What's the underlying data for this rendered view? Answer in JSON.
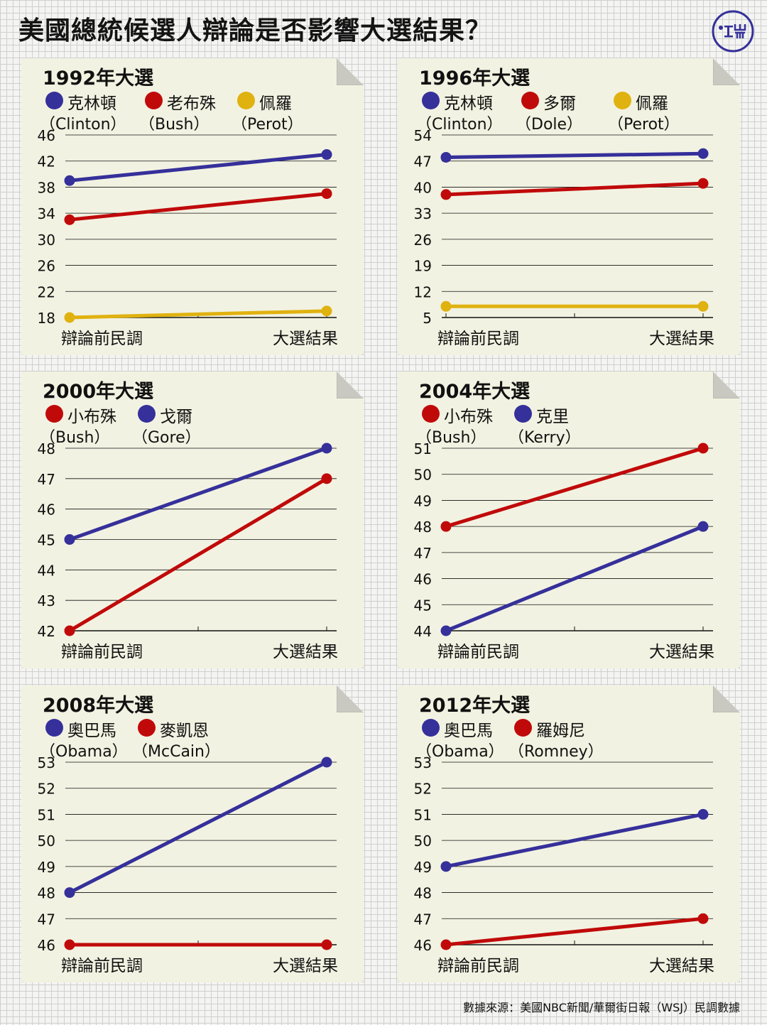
{
  "title": "美國總統候選人辯論是否影響大選結果？",
  "source": "數據來源：美國NBC新聞/華爾街日報（WSJ）民調數據",
  "logo_icon": "theinitium-logo-icon",
  "colors": {
    "blue": "#35309a",
    "red": "#c00a0a",
    "yellow": "#e0b210",
    "panel": "#f2f2e2",
    "axis": "#111111"
  },
  "chart_data": [
    {
      "type": "line",
      "title": "1992年大選",
      "categories": [
        "辯論前民調",
        "大選結果"
      ],
      "yticks": [
        18,
        22,
        26,
        30,
        34,
        38,
        42,
        46
      ],
      "ylim": [
        18,
        46
      ],
      "legend": [
        {
          "cn": "克林頓",
          "en": "（Clinton）",
          "color": "#35309a"
        },
        {
          "cn": "老布殊",
          "en": "（Bush）",
          "color": "#c00a0a"
        },
        {
          "cn": "佩羅",
          "en": "（Perot）",
          "color": "#e0b210"
        }
      ],
      "series": [
        {
          "name": "克林頓（Clinton）",
          "color": "#35309a",
          "values": [
            39,
            43
          ]
        },
        {
          "name": "老布殊（Bush）",
          "color": "#c00a0a",
          "values": [
            33,
            37
          ]
        },
        {
          "name": "佩羅（Perot）",
          "color": "#e0b210",
          "values": [
            18,
            19
          ]
        }
      ]
    },
    {
      "type": "line",
      "title": "1996年大選",
      "categories": [
        "辯論前民調",
        "大選結果"
      ],
      "yticks": [
        5,
        12,
        19,
        26,
        33,
        40,
        47,
        54
      ],
      "ylim": [
        5,
        54
      ],
      "legend": [
        {
          "cn": "克林頓",
          "en": "（Clinton）",
          "color": "#35309a"
        },
        {
          "cn": "多爾",
          "en": "（Dole）",
          "color": "#c00a0a"
        },
        {
          "cn": "佩羅",
          "en": "（Perot）",
          "color": "#e0b210"
        }
      ],
      "series": [
        {
          "name": "克林頓（Clinton）",
          "color": "#35309a",
          "values": [
            48,
            49
          ]
        },
        {
          "name": "多爾（Dole）",
          "color": "#c00a0a",
          "values": [
            38,
            41
          ]
        },
        {
          "name": "佩羅（Perot）",
          "color": "#e0b210",
          "values": [
            8,
            8
          ]
        }
      ]
    },
    {
      "type": "line",
      "title": "2000年大選",
      "categories": [
        "辯論前民調",
        "大選結果"
      ],
      "yticks": [
        42,
        43,
        44,
        45,
        46,
        47,
        48
      ],
      "ylim": [
        42,
        48
      ],
      "legend": [
        {
          "cn": "小布殊",
          "en": "（Bush）",
          "color": "#c00a0a"
        },
        {
          "cn": "戈爾",
          "en": "（Gore）",
          "color": "#35309a"
        }
      ],
      "series": [
        {
          "name": "小布殊（Bush）",
          "color": "#c00a0a",
          "values": [
            42,
            47
          ]
        },
        {
          "name": "戈爾（Gore）",
          "color": "#35309a",
          "values": [
            45,
            48
          ]
        }
      ]
    },
    {
      "type": "line",
      "title": "2004年大選",
      "categories": [
        "辯論前民調",
        "大選結果"
      ],
      "yticks": [
        44,
        45,
        46,
        47,
        48,
        49,
        50,
        51
      ],
      "ylim": [
        44,
        51
      ],
      "legend": [
        {
          "cn": "小布殊",
          "en": "（Bush）",
          "color": "#c00a0a"
        },
        {
          "cn": "克里",
          "en": "（Kerry）",
          "color": "#35309a"
        }
      ],
      "series": [
        {
          "name": "小布殊（Bush）",
          "color": "#c00a0a",
          "values": [
            48,
            51
          ]
        },
        {
          "name": "克里（Kerry）",
          "color": "#35309a",
          "values": [
            44,
            48
          ]
        }
      ]
    },
    {
      "type": "line",
      "title": "2008年大選",
      "categories": [
        "辯論前民調",
        "大選結果"
      ],
      "yticks": [
        46,
        47,
        48,
        49,
        50,
        51,
        52,
        53
      ],
      "ylim": [
        46,
        53
      ],
      "legend": [
        {
          "cn": "奧巴馬",
          "en": "（Obama）",
          "color": "#35309a"
        },
        {
          "cn": "麥凱恩",
          "en": "（McCain）",
          "color": "#c00a0a"
        }
      ],
      "series": [
        {
          "name": "奧巴馬（Obama）",
          "color": "#35309a",
          "values": [
            48,
            53
          ]
        },
        {
          "name": "麥凱恩（McCain）",
          "color": "#c00a0a",
          "values": [
            46,
            46
          ]
        }
      ]
    },
    {
      "type": "line",
      "title": "2012年大選",
      "categories": [
        "辯論前民調",
        "大選結果"
      ],
      "yticks": [
        46,
        47,
        48,
        49,
        50,
        51,
        52,
        53
      ],
      "ylim": [
        46,
        53
      ],
      "legend": [
        {
          "cn": "奧巴馬",
          "en": "（Obama）",
          "color": "#35309a"
        },
        {
          "cn": "羅姆尼",
          "en": "（Romney）",
          "color": "#c00a0a"
        }
      ],
      "series": [
        {
          "name": "奧巴馬（Obama）",
          "color": "#35309a",
          "values": [
            49,
            51
          ]
        },
        {
          "name": "羅姆尼（Romney）",
          "color": "#c00a0a",
          "values": [
            46,
            47
          ]
        }
      ]
    }
  ]
}
